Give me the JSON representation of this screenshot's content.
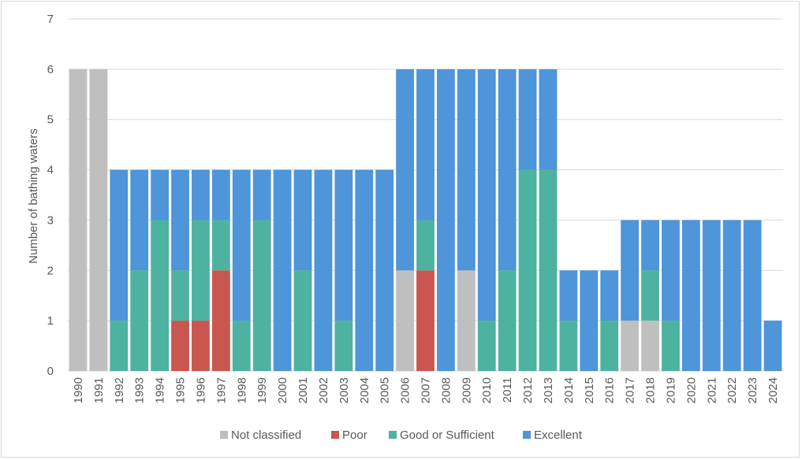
{
  "chart_data": {
    "type": "bar",
    "stacked": true,
    "title": "",
    "xlabel": "",
    "ylabel": "Number of bathing waters",
    "ylim": [
      0,
      7
    ],
    "yticks": [
      0,
      1,
      2,
      3,
      4,
      5,
      6,
      7
    ],
    "grid": true,
    "legend_position": "bottom",
    "categories": [
      "1990",
      "1991",
      "1992",
      "1993",
      "1994",
      "1995",
      "1996",
      "1997",
      "1998",
      "1999",
      "2000",
      "2001",
      "2002",
      "2003",
      "2004",
      "2005",
      "2006",
      "2007",
      "2008",
      "2009",
      "2010",
      "2011",
      "2012",
      "2013",
      "2014",
      "2015",
      "2016",
      "2017",
      "2018",
      "2019",
      "2020",
      "2021",
      "2022",
      "2023",
      "2024"
    ],
    "series": [
      {
        "name": "Not classified",
        "color": "#bfbfbf",
        "values": [
          6,
          6,
          0,
          0,
          0,
          0,
          0,
          0,
          0,
          0,
          0,
          0,
          0,
          0,
          0,
          0,
          2,
          0,
          0,
          2,
          0,
          0,
          0,
          0,
          0,
          0,
          0,
          1,
          1,
          0,
          0,
          0,
          0,
          0,
          0
        ]
      },
      {
        "name": "Poor",
        "color": "#c9564f",
        "values": [
          0,
          0,
          0,
          0,
          0,
          1,
          1,
          2,
          0,
          0,
          0,
          0,
          0,
          0,
          0,
          0,
          0,
          2,
          0,
          0,
          0,
          0,
          0,
          0,
          0,
          0,
          0,
          0,
          0,
          0,
          0,
          0,
          0,
          0,
          0
        ]
      },
      {
        "name": "Good or Sufficient",
        "color": "#4eb2a0",
        "values": [
          0,
          0,
          1,
          2,
          3,
          1,
          2,
          1,
          1,
          3,
          0,
          2,
          0,
          1,
          0,
          0,
          0,
          1,
          0,
          0,
          1,
          2,
          4,
          4,
          1,
          0,
          1,
          0,
          1,
          1,
          0,
          0,
          0,
          0,
          0
        ]
      },
      {
        "name": "Excellent",
        "color": "#4e95d9",
        "values": [
          0,
          0,
          3,
          2,
          1,
          2,
          1,
          1,
          3,
          1,
          4,
          2,
          4,
          3,
          4,
          4,
          4,
          3,
          6,
          4,
          5,
          4,
          2,
          2,
          1,
          2,
          1,
          2,
          1,
          2,
          3,
          3,
          3,
          3,
          1
        ]
      }
    ]
  }
}
